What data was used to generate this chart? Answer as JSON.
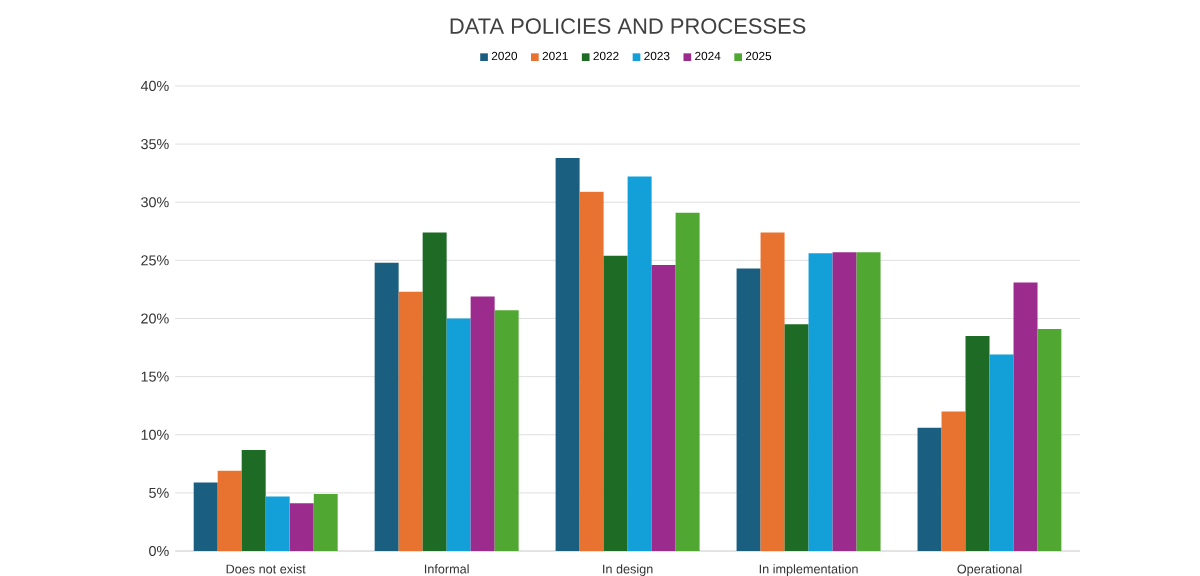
{
  "chart_data": {
    "type": "bar",
    "title": "DATA POLICIES AND PROCESSES",
    "categories": [
      "Does not exist",
      "Informal",
      "In design",
      "In implementation",
      "Operational"
    ],
    "series": [
      {
        "name": "2020",
        "color": "#1a5e80",
        "values": [
          5.9,
          24.8,
          33.8,
          24.3,
          10.6
        ]
      },
      {
        "name": "2021",
        "color": "#e87330",
        "values": [
          6.9,
          22.3,
          30.9,
          27.4,
          12.0
        ]
      },
      {
        "name": "2022",
        "color": "#1e6b25",
        "values": [
          8.7,
          27.4,
          25.4,
          19.5,
          18.5
        ]
      },
      {
        "name": "2023",
        "color": "#139fd8",
        "values": [
          4.7,
          20.0,
          32.2,
          25.6,
          16.9
        ]
      },
      {
        "name": "2024",
        "color": "#9c2b8e",
        "values": [
          4.1,
          21.9,
          24.6,
          25.7,
          23.1
        ]
      },
      {
        "name": "2025",
        "color": "#50a832",
        "values": [
          4.9,
          20.7,
          29.1,
          25.7,
          19.1
        ]
      }
    ],
    "ylim": [
      0,
      40
    ],
    "yticks": [
      {
        "value": 0,
        "label": "0%"
      },
      {
        "value": 5,
        "label": "5%"
      },
      {
        "value": 10,
        "label": "10%"
      },
      {
        "value": 15,
        "label": "15%"
      },
      {
        "value": 20,
        "label": "20%"
      },
      {
        "value": 25,
        "label": "25%"
      },
      {
        "value": 30,
        "label": "30%"
      },
      {
        "value": 35,
        "label": "35%"
      },
      {
        "value": 40,
        "label": "40%"
      }
    ],
    "grid": "y",
    "legend": "top"
  }
}
